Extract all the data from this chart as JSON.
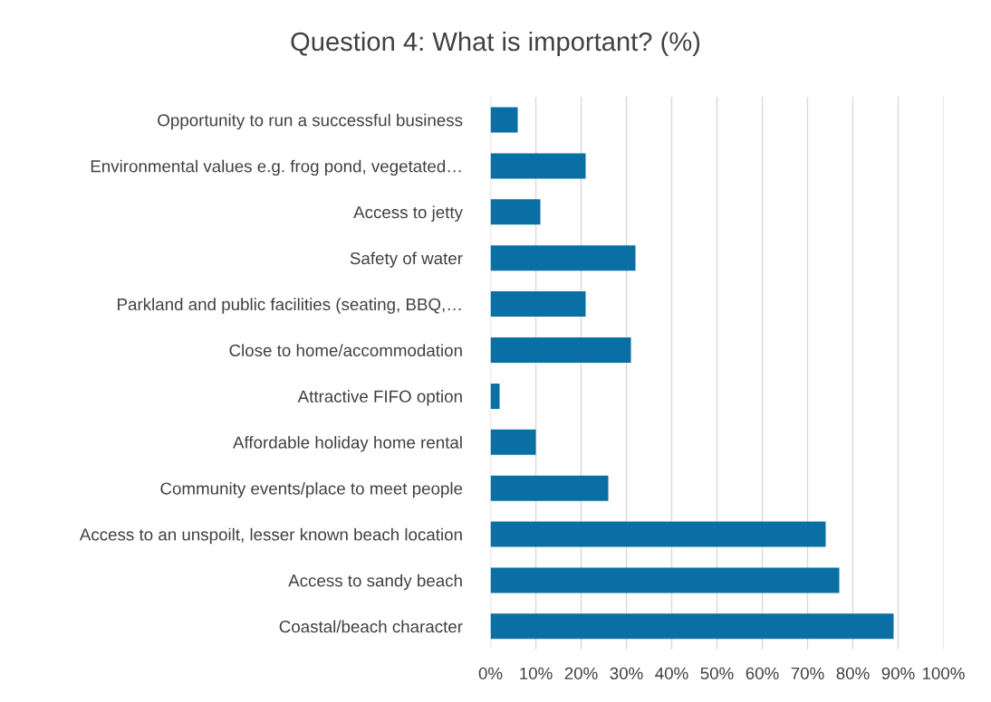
{
  "chart_data": {
    "type": "bar",
    "orientation": "horizontal",
    "title": "Question 4: What is important? (%)",
    "categories": [
      "Opportunity to run a successful business",
      "Environmental values e.g. frog pond, vegetated…",
      "Access to jetty",
      "Safety of water",
      "Parkland and public facilities (seating, BBQ,…",
      "Close to home/accommodation",
      "Attractive FIFO option",
      "Affordable holiday home rental",
      "Community events/place to meet people",
      "Access to an unspoilt, lesser known beach location",
      "Access to sandy beach",
      "Coastal/beach character"
    ],
    "values": [
      6,
      21,
      11,
      32,
      21,
      31,
      2,
      10,
      26,
      74,
      77,
      89
    ],
    "color": "#0a6fa5",
    "xlim": [
      0,
      100
    ],
    "xticks": [
      {
        "value": 0,
        "label": "0%"
      },
      {
        "value": 10,
        "label": "10%"
      },
      {
        "value": 20,
        "label": "20%"
      },
      {
        "value": 30,
        "label": "30%"
      },
      {
        "value": 40,
        "label": "40%"
      },
      {
        "value": 50,
        "label": "50%"
      },
      {
        "value": 60,
        "label": "60%"
      },
      {
        "value": 70,
        "label": "70%"
      },
      {
        "value": 80,
        "label": "80%"
      },
      {
        "value": 90,
        "label": "90%"
      },
      {
        "value": 100,
        "label": "100%"
      }
    ],
    "grid": "x"
  }
}
